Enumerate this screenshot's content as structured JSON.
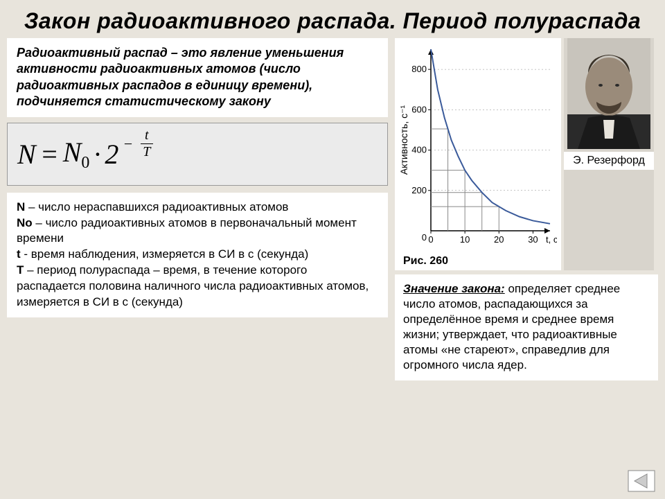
{
  "title": "Закон радиоактивного распада. Период полураспада",
  "definition": {
    "term": "Радиоактивный распад –",
    "rest": " это явление уменьшения активности радиоактивных атомов (число радиоактивных распадов в единицу времени), подчиняется статистическому закону"
  },
  "formula": {
    "lhs": "N",
    "eq": "=",
    "base": "N",
    "sub": "0",
    "dot": "·",
    "two": "2",
    "exp_num": "t",
    "exp_den": "T"
  },
  "legend": {
    "l1_sym": "N",
    "l1": " – число  нераспавшихся радиоактивных атомов",
    "l2_sym": "Nо",
    "l2": " – число радиоактивных атомов в первоначальный момент времени",
    "l3_sym": "t",
    "l3": "  - время наблюдения, измеряется в СИ в с (секунда)",
    "l4_sym": "T",
    "l4": " – период полураспада – время, в течение которого распадается половина наличного числа радиоактивных атомов, измеряется в СИ в с (секунда)"
  },
  "chart": {
    "type": "line",
    "ylabel": "Активность, с⁻¹",
    "xlabel": "t, сут",
    "ylim": [
      0,
      900
    ],
    "xlim": [
      0,
      35
    ],
    "yticks": [
      0,
      200,
      400,
      600,
      800
    ],
    "xticks": [
      0,
      10,
      20,
      30
    ],
    "xtick_labels": [
      "0",
      "10",
      "20",
      "30"
    ],
    "ytick_labels": [
      "0",
      "200",
      "400",
      "600",
      "800"
    ],
    "curve_color": "#3a5a9a",
    "grid_color": "#888888",
    "axis_color": "#000000",
    "background_color": "#ffffff",
    "points_x": [
      0,
      2,
      4,
      6,
      8,
      10,
      12,
      15,
      18,
      22,
      26,
      30,
      35
    ],
    "points_y": [
      900,
      700,
      560,
      450,
      370,
      300,
      250,
      190,
      140,
      100,
      70,
      50,
      35
    ],
    "drop_lines_x": [
      5,
      10,
      15,
      20
    ],
    "line_width": 2
  },
  "portrait_caption": "Э. Резерфорд",
  "fig_label": "Рис. 260",
  "significance": {
    "lead": "Значение закона:",
    "text": " определяет среднее число атомов, распадающихся за определённое время и среднее время жизни; утверждает, что радиоактивные атомы «не стареют», справедлив для огромного числа ядер."
  },
  "nav": {
    "arrow_color": "#cccccc",
    "border_color": "#888888"
  }
}
